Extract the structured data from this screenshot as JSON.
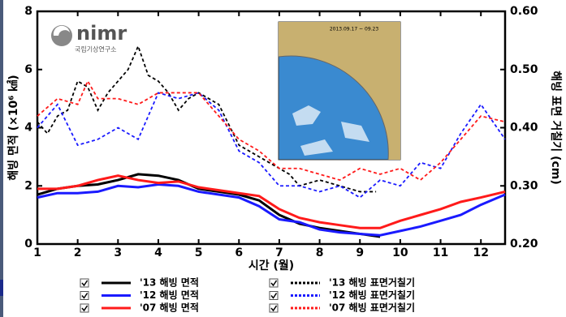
{
  "logo": {
    "name": "nimr",
    "subtitle": "국립기상연구소"
  },
  "inset": {
    "label": "2013.09.17 ~ 09.23"
  },
  "chart_data": {
    "type": "line",
    "x_label": "시간 (월)",
    "y_label": "해빙 면적 (×10⁶ ㎢)",
    "y2_label": "해빙 표면 거칠기 (cm)",
    "xlim": [
      1,
      12.6
    ],
    "xticks": [
      1,
      2,
      3,
      4,
      5,
      6,
      7,
      8,
      9,
      10,
      11,
      12
    ],
    "ylim": [
      0,
      8
    ],
    "yticks": [
      0,
      2,
      4,
      6,
      8
    ],
    "y2lim": [
      0.2,
      0.6
    ],
    "y2ticks": [
      {
        "value": 0.2,
        "label": "0.20"
      },
      {
        "value": 0.3,
        "label": "0.30"
      },
      {
        "value": 0.4,
        "label": "0.40"
      },
      {
        "value": 0.5,
        "label": "0.50"
      },
      {
        "value": 0.6,
        "label": "0.60"
      }
    ],
    "series": [
      {
        "name": "'13 해빙 면적",
        "color": "#000000",
        "style": "solid",
        "x": [
          1,
          1.5,
          2,
          2.5,
          3,
          3.5,
          4,
          4.5,
          5,
          5.5,
          6,
          6.5,
          7,
          7.5,
          8,
          8.5,
          9,
          9.5
        ],
        "values": [
          1.7,
          1.9,
          2.0,
          2.05,
          2.2,
          2.4,
          2.35,
          2.2,
          1.9,
          1.8,
          1.7,
          1.5,
          1.0,
          0.7,
          0.55,
          0.45,
          0.35,
          0.25
        ]
      },
      {
        "name": "'12 해빙 면적",
        "color": "#1a1aff",
        "style": "solid",
        "x": [
          1,
          1.5,
          2,
          2.5,
          3,
          3.5,
          4,
          4.5,
          5,
          5.5,
          6,
          6.5,
          7,
          7.5,
          8,
          8.5,
          9,
          9.5,
          10,
          10.5,
          11,
          11.5,
          12,
          12.6
        ],
        "values": [
          1.6,
          1.75,
          1.75,
          1.8,
          2.0,
          1.95,
          2.05,
          2.0,
          1.8,
          1.7,
          1.6,
          1.3,
          0.85,
          0.75,
          0.5,
          0.4,
          0.35,
          0.3,
          0.45,
          0.6,
          0.8,
          1.0,
          1.35,
          1.7
        ]
      },
      {
        "name": "'07 해빙 면적",
        "color": "#ff1a1a",
        "style": "solid",
        "x": [
          1,
          1.5,
          2,
          2.5,
          3,
          3.5,
          4,
          4.5,
          5,
          5.5,
          6,
          6.5,
          7,
          7.5,
          8,
          8.5,
          9,
          9.5,
          10,
          10.5,
          11,
          11.5,
          12,
          12.6
        ],
        "values": [
          1.9,
          1.9,
          2.0,
          2.2,
          2.35,
          2.2,
          2.1,
          2.15,
          1.95,
          1.85,
          1.75,
          1.65,
          1.2,
          0.9,
          0.75,
          0.65,
          0.55,
          0.55,
          0.8,
          1.0,
          1.2,
          1.45,
          1.6,
          1.8
        ]
      },
      {
        "name": "'13 해빙 표면거칠기",
        "color": "#000000",
        "style": "dotted",
        "axis": "y2",
        "x": [
          1,
          1.25,
          1.5,
          1.75,
          2,
          2.25,
          2.5,
          2.75,
          3,
          3.25,
          3.5,
          3.75,
          4,
          4.25,
          4.5,
          4.75,
          5,
          5.5,
          6,
          6.5,
          7,
          7.25,
          7.5,
          8,
          8.5,
          9,
          9.4
        ],
        "values": [
          0.41,
          0.39,
          0.42,
          0.43,
          0.48,
          0.47,
          0.43,
          0.46,
          0.48,
          0.5,
          0.54,
          0.49,
          0.48,
          0.46,
          0.43,
          0.45,
          0.46,
          0.44,
          0.37,
          0.35,
          0.33,
          0.32,
          0.3,
          0.31,
          0.3,
          0.29,
          0.29
        ]
      },
      {
        "name": "'12 해빙 표면거칠기",
        "color": "#1a1aff",
        "style": "dotted",
        "axis": "y2",
        "x": [
          1,
          1.5,
          2,
          2.5,
          3,
          3.5,
          4,
          4.5,
          5,
          5.5,
          6,
          6.5,
          7,
          7.5,
          8,
          8.5,
          9,
          9.5,
          10,
          10.5,
          11,
          11.5,
          12,
          12.6
        ],
        "values": [
          0.4,
          0.44,
          0.37,
          0.38,
          0.4,
          0.38,
          0.46,
          0.45,
          0.46,
          0.43,
          0.36,
          0.34,
          0.3,
          0.3,
          0.29,
          0.3,
          0.28,
          0.31,
          0.3,
          0.34,
          0.33,
          0.39,
          0.44,
          0.38
        ]
      },
      {
        "name": "'07 해빙 표면거칠기",
        "color": "#ff1a1a",
        "style": "dotted",
        "axis": "y2",
        "x": [
          1,
          1.5,
          2,
          2.25,
          2.5,
          3,
          3.5,
          4,
          4.5,
          5,
          5.5,
          6,
          6.5,
          7,
          7.5,
          8,
          8.5,
          9,
          9.5,
          10,
          10.5,
          11,
          11.5,
          12,
          12.6
        ],
        "values": [
          0.42,
          0.45,
          0.44,
          0.48,
          0.45,
          0.45,
          0.44,
          0.46,
          0.46,
          0.46,
          0.42,
          0.38,
          0.36,
          0.33,
          0.33,
          0.32,
          0.31,
          0.33,
          0.32,
          0.33,
          0.31,
          0.34,
          0.38,
          0.42,
          0.41
        ]
      }
    ]
  }
}
